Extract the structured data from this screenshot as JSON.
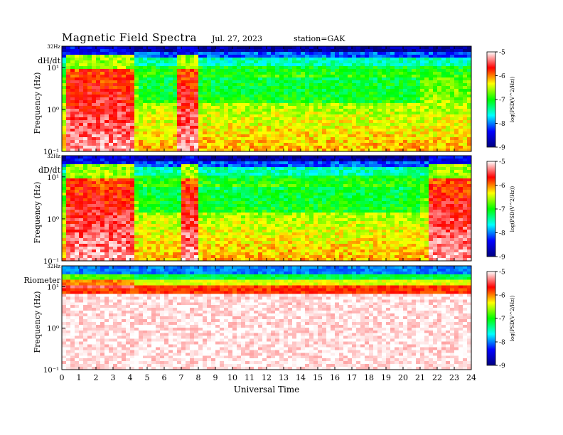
{
  "header": {
    "title": "Magnetic  Field  Spectra",
    "date": "Jul.  27,  2023",
    "station": "station=GAK"
  },
  "colors": {
    "scale": [
      "#ffffff",
      "#ff0000",
      "#ffff00",
      "#00ff00",
      "#00ffff",
      "#0000ff",
      "#00007f"
    ],
    "background": "#ffffff"
  },
  "chart_data": [
    {
      "type": "heatmap",
      "panel_label": "dH/dt",
      "top_label": "32Hz",
      "ylabel": "Frequency  (Hz)",
      "yscale": "log",
      "ylim": [
        0.1,
        32
      ],
      "yticks": [
        "10¹",
        "10⁰",
        "10⁻¹"
      ],
      "xlim": [
        0,
        24
      ],
      "colorbar": {
        "label": "log(PSD(V^2/Hz))",
        "ticks": [
          "-5",
          "-6",
          "-7",
          "-8",
          "-9"
        ],
        "range": [
          -9,
          -5
        ]
      },
      "description_levels": {
        "quiet_low_freq": -6,
        "disturbed_hours": [
          [
            0.2,
            4.3
          ],
          [
            6.7,
            8.1
          ]
        ]
      }
    },
    {
      "type": "heatmap",
      "panel_label": "dD/dt",
      "top_label": "32Hz",
      "ylabel": "Frequency  (Hz)",
      "yscale": "log",
      "ylim": [
        0.1,
        32
      ],
      "yticks": [
        "10¹",
        "10⁰",
        "10⁻¹"
      ],
      "xlim": [
        0,
        24
      ],
      "colorbar": {
        "label": "log(PSD(V^2/Hz))",
        "ticks": [
          "-5",
          "-6",
          "-7",
          "-8",
          "-9"
        ],
        "range": [
          -9,
          -5
        ]
      },
      "description_levels": {
        "quiet_low_freq": -6,
        "disturbed_hours": [
          [
            0.2,
            4.3
          ],
          [
            7.0,
            8.0
          ],
          [
            21.5,
            24
          ]
        ]
      }
    },
    {
      "type": "heatmap",
      "panel_label": "Riometer",
      "top_label": "32Hz",
      "ylabel": "Frequency  (Hz)",
      "yscale": "log",
      "ylim": [
        0.1,
        32
      ],
      "yticks": [
        "10¹",
        "10⁰",
        "10⁻¹"
      ],
      "xlim": [
        0,
        24
      ],
      "xlabel": "Universal Time",
      "xticks": [
        "0",
        "1",
        "2",
        "3",
        "4",
        "5",
        "6",
        "7",
        "8",
        "9",
        "10",
        "11",
        "12",
        "13",
        "14",
        "15",
        "16",
        "17",
        "18",
        "19",
        "20",
        "21",
        "22",
        "23",
        "24"
      ],
      "colorbar": {
        "label": "log(PSD(V^2/Hz))",
        "ticks": [
          "-5",
          "-6",
          "-7",
          "-8",
          "-9"
        ],
        "range": [
          -9,
          -5
        ]
      }
    }
  ]
}
